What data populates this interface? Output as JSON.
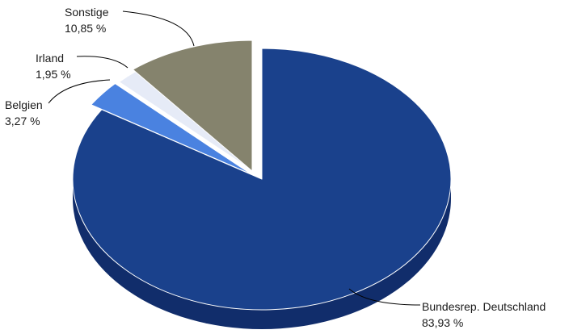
{
  "chart_data": {
    "type": "pie",
    "style": "3d-exploded",
    "slices": [
      {
        "label": "Bundesrep. Deutschland",
        "value": 83.93,
        "value_text": "83,93 %",
        "color": "#1a418c",
        "side_color": "#112d6b"
      },
      {
        "label": "Belgien",
        "value": 3.27,
        "value_text": "3,27 %",
        "color": "#4a82e0",
        "side_color": "#3465bb"
      },
      {
        "label": "Irland",
        "value": 1.95,
        "value_text": "1,95 %",
        "color": "#e6ebf7",
        "side_color": "#c4ccdf"
      },
      {
        "label": "Sonstige",
        "value": 10.85,
        "value_text": "10,85 %",
        "color": "#85836d",
        "side_color": "#67654f"
      }
    ]
  }
}
